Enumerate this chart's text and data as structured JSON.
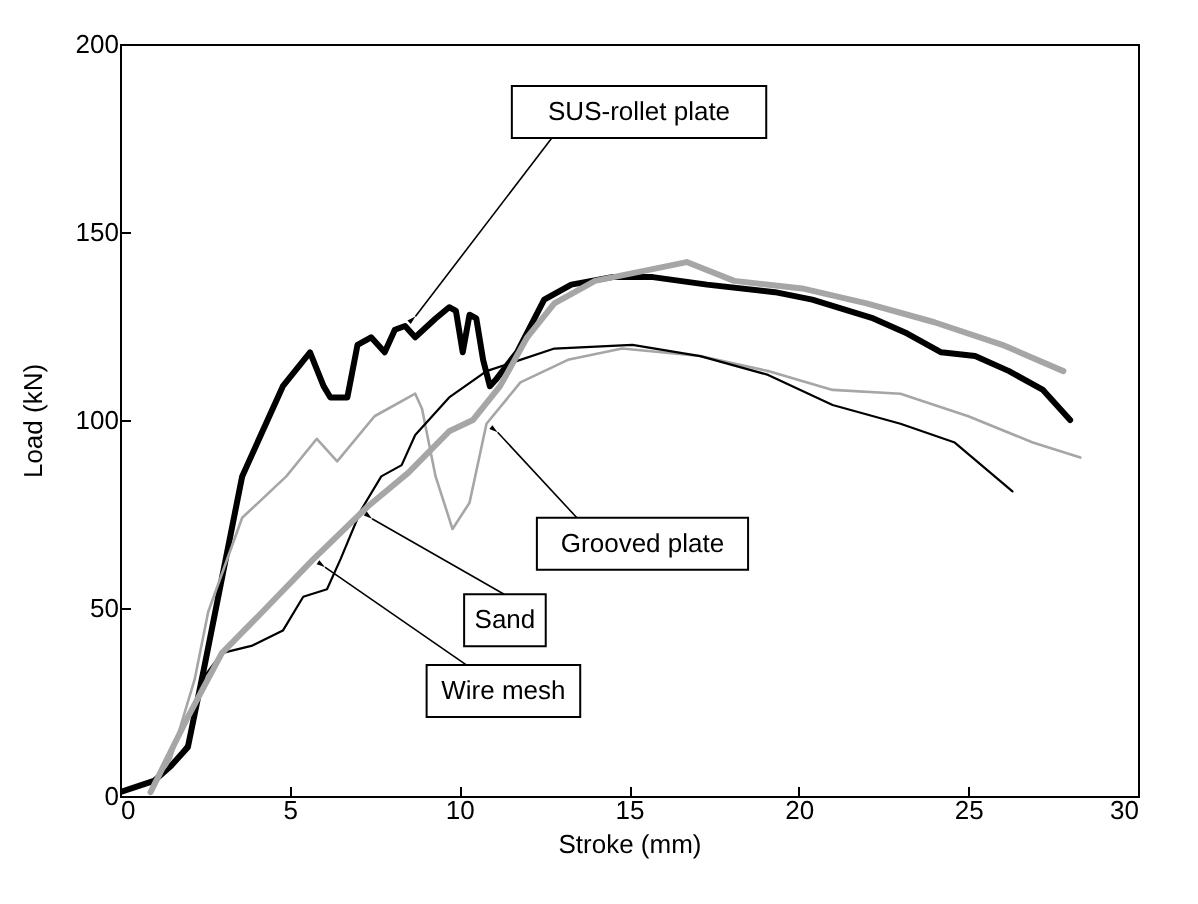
{
  "chart_data": {
    "type": "line",
    "xlabel": "Stroke (mm)",
    "ylabel": "Load (kN)",
    "xlim": [
      0,
      30
    ],
    "ylim": [
      0,
      200
    ],
    "xticks": [
      0,
      5,
      10,
      15,
      20,
      25,
      30
    ],
    "yticks": [
      0,
      50,
      100,
      150,
      200
    ],
    "marker": "none",
    "line_style": "solid",
    "series": [
      {
        "color": "#000000",
        "x": [
          0,
          1,
          1.5,
          2,
          2.5,
          3.6,
          4.8,
          5.6,
          6,
          6.2,
          6.7,
          7,
          7.4,
          7.8,
          8.1,
          8.4,
          8.7,
          9.3,
          9.7,
          9.9,
          10.1,
          10.3,
          10.5,
          10.7,
          10.9,
          11.1,
          11.7,
          12.5,
          13.3,
          14.5,
          15.7,
          17.3,
          19.3,
          20.4,
          22.2,
          23.2,
          24.2,
          25.2,
          26.2,
          27.2,
          28
        ],
        "values": [
          1,
          4,
          8,
          13,
          35,
          85,
          109,
          118,
          109,
          106,
          106,
          120,
          122,
          118,
          124,
          125,
          122,
          127,
          130,
          129,
          118,
          128,
          127,
          116,
          109,
          111,
          118,
          132,
          136,
          138,
          138,
          136,
          134,
          132,
          127,
          123,
          118,
          117,
          113,
          108,
          100
        ]
      },
      {
        "color": "#a6a6a6",
        "x": [
          0.9,
          1.5,
          2.2,
          2.6,
          3.6,
          4.9,
          5.8,
          6.4,
          7.5,
          8.7,
          8.9,
          9.3,
          9.8,
          10.3,
          10.8,
          11.8,
          13.2,
          14.8,
          17.1,
          19.1,
          21,
          23,
          25,
          26.9,
          28.3
        ],
        "values": [
          1,
          10,
          31,
          49,
          74,
          85,
          95,
          89,
          101,
          107,
          103,
          85,
          71,
          78,
          99,
          110,
          116,
          119,
          117,
          113,
          108,
          107,
          101,
          94,
          90
        ]
      },
      {
        "color": "#000000",
        "x": [
          0,
          1,
          1.5,
          2,
          2.5,
          3,
          3.9,
          4.8,
          5.4,
          6.1,
          6.5,
          7.1,
          7.7,
          8.3,
          8.7,
          9.7,
          10.8,
          12.8,
          15.1,
          17.1,
          19.1,
          21,
          23,
          24.6,
          26.3
        ],
        "values": [
          1,
          4,
          8,
          14,
          32,
          38,
          40,
          44,
          53,
          55,
          63,
          76,
          85,
          88,
          96,
          106,
          113,
          119,
          120,
          117,
          112,
          104,
          99,
          94,
          81
        ]
      },
      {
        "color": "#a6a6a6",
        "x": [
          0.9,
          2,
          3,
          4.2,
          5.7,
          7.3,
          8.5,
          9.7,
          10.4,
          11.2,
          12,
          12.8,
          14,
          16.7,
          18.1,
          20.1,
          22,
          24,
          26,
          27.8
        ],
        "values": [
          1,
          21,
          38,
          49,
          63,
          77,
          86,
          97,
          100,
          109,
          122,
          131,
          137,
          142,
          137,
          135,
          131,
          126,
          120,
          113
        ]
      }
    ],
    "annotations": [
      {
        "text": "SUS-rollet plate",
        "x": 8.4,
        "y": 125
      },
      {
        "text": "Grooved plate",
        "x": 10.8,
        "y": 99
      },
      {
        "text": "Sand",
        "x": 7.1,
        "y": 76
      },
      {
        "text": "Wire mesh",
        "x": 5.7,
        "y": 63
      }
    ]
  }
}
